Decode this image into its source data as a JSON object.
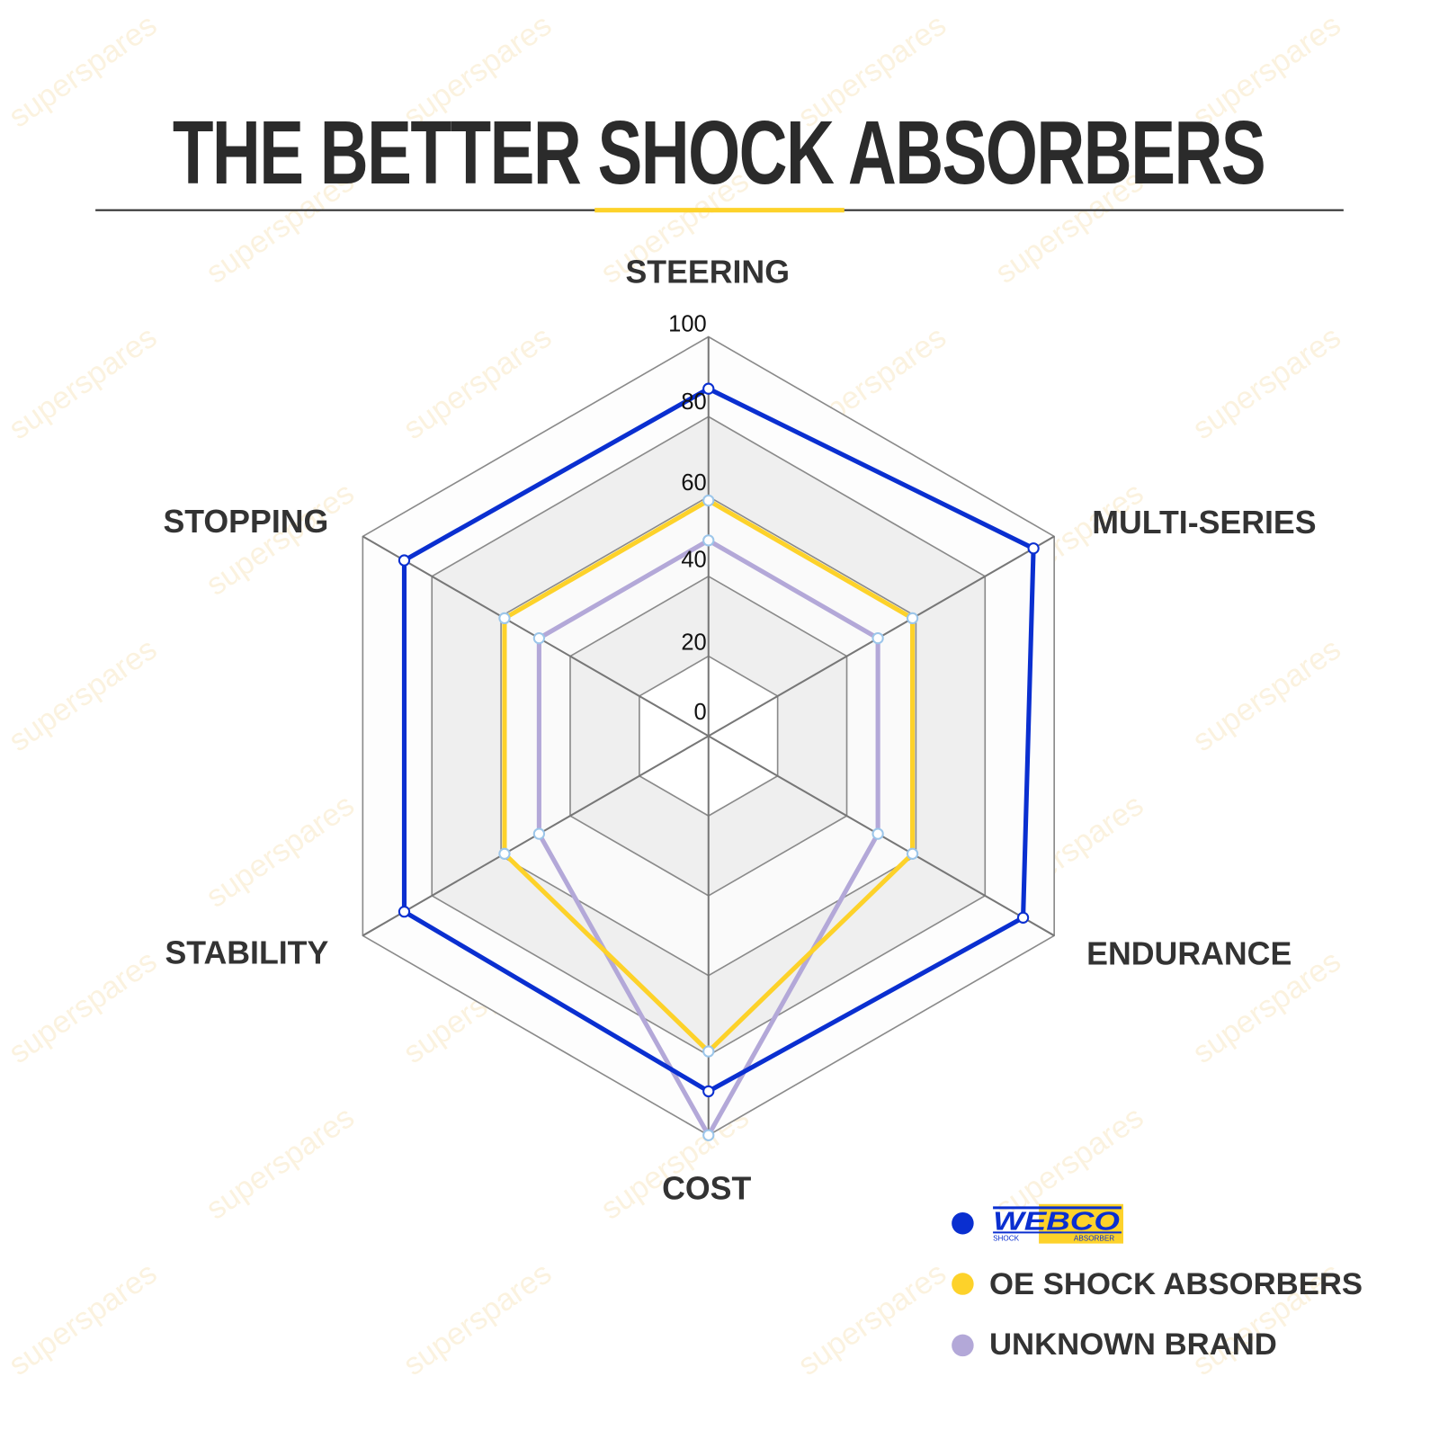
{
  "watermark": "superspares",
  "chart_data": {
    "type": "radar",
    "title": "THE BETTER SHOCK ABSORBERS",
    "categories": [
      "STEERING",
      "MULTI-SERIES",
      "ENDURANCE",
      "COST",
      "STABILITY",
      "STOPPING"
    ],
    "ticks": [
      "0",
      "20",
      "40",
      "60",
      "80",
      "100"
    ],
    "rlim": [
      0,
      100
    ],
    "grid": true,
    "legend_position": "bottom-right",
    "series": [
      {
        "name": "WEBCO",
        "logo": true,
        "color": "#0a2fd0",
        "values": [
          87,
          94,
          91,
          89,
          88,
          88
        ]
      },
      {
        "name": "OE SHOCK ABSORBERS",
        "color": "#fdd22a",
        "values": [
          59,
          59,
          59,
          79,
          59,
          59
        ]
      },
      {
        "name": "UNKNOWN BRAND",
        "color": "#b3a8d8",
        "values": [
          49,
          49,
          49,
          100,
          49,
          49
        ]
      }
    ],
    "logo_text": {
      "brand": "WEBCO",
      "sub_left": "SHOCK",
      "sub_right": "ABSORBER"
    }
  }
}
